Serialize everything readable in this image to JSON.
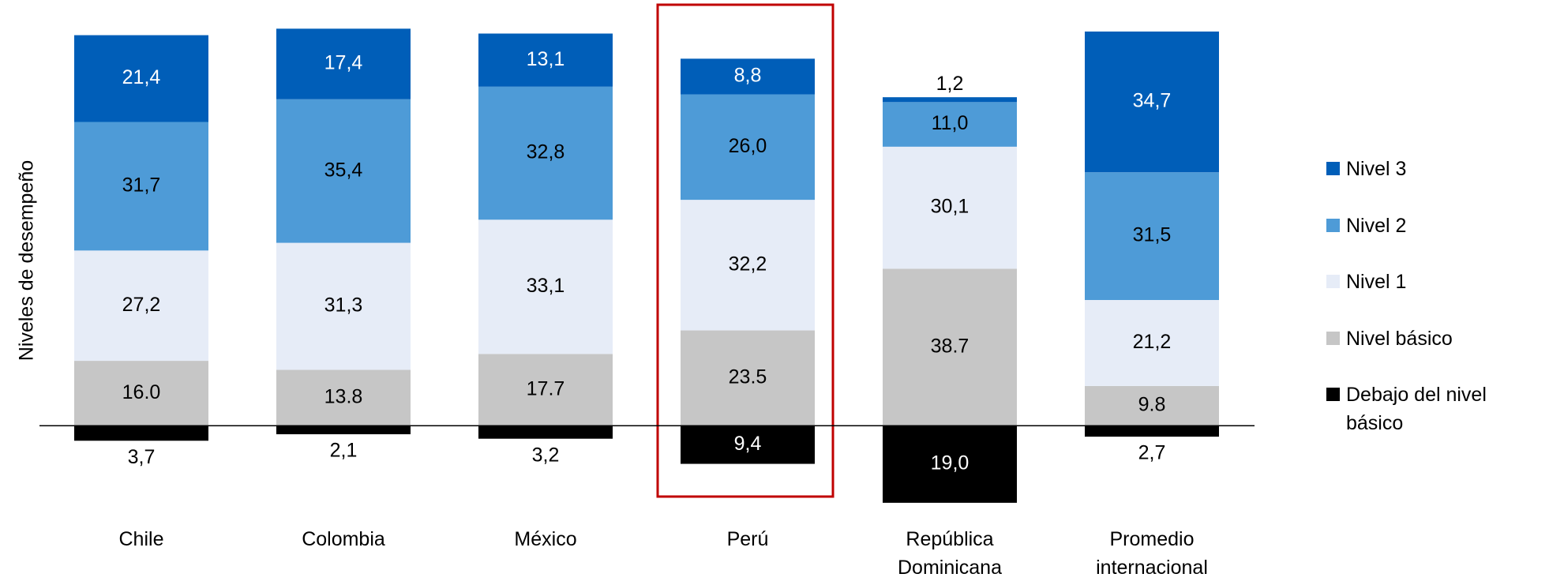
{
  "chart_data": {
    "type": "stacked_bar",
    "y_label": "Niveles de desempeño",
    "categories": [
      "Chile",
      "Colombia",
      "México",
      "Perú",
      "República Dominicana",
      "Promedio internacional"
    ],
    "series": [
      {
        "name": "Debajo del nivel básico",
        "color": "#000000",
        "values": [
          -3.7,
          -2.1,
          -3.2,
          -9.4,
          -19.0,
          -2.7
        ],
        "value_labels": [
          "3,7",
          "2,1",
          "3,2",
          "9,4",
          "19,0",
          "2,7"
        ]
      },
      {
        "name": "Nivel básico",
        "color": "#c6c6c6",
        "values": [
          16.0,
          13.8,
          17.7,
          23.5,
          38.7,
          9.8
        ],
        "value_labels": [
          "16.0",
          "13.8",
          "17.7",
          "23.5",
          "38.7",
          "9.8"
        ]
      },
      {
        "name": "Nivel 1",
        "color": "#e6ecf7",
        "values": [
          27.2,
          31.3,
          33.1,
          32.2,
          30.1,
          21.2
        ],
        "value_labels": [
          "27,2",
          "31,3",
          "33,1",
          "32,2",
          "30,1",
          "21,2"
        ]
      },
      {
        "name": "Nivel 2",
        "color": "#4e9bd7",
        "values": [
          31.7,
          35.4,
          32.8,
          26.0,
          11.0,
          31.5
        ],
        "value_labels": [
          "31,7",
          "35,4",
          "32,8",
          "26,0",
          "11,0",
          "31,5"
        ]
      },
      {
        "name": "Nivel 3",
        "color": "#005eb8",
        "values": [
          21.4,
          17.4,
          13.1,
          8.8,
          1.2,
          34.7
        ],
        "value_labels": [
          "21,4",
          "17,4",
          "13,1",
          "8,8",
          "1,2",
          "34,7"
        ]
      }
    ],
    "ylim": [
      -20,
      104
    ],
    "legend": "right"
  }
}
